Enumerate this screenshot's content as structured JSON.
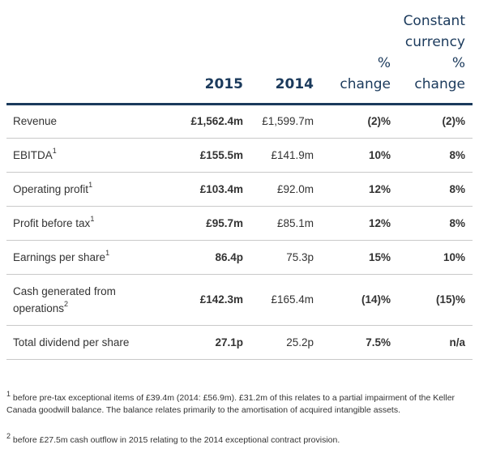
{
  "header": {
    "col_2015": "2015",
    "col_2014": "2014",
    "pct_change_line1": "%",
    "pct_change_line2": "change",
    "cc_line1": "Constant",
    "cc_line2": "currency",
    "cc_line3": "%",
    "cc_line4": "change"
  },
  "rows": [
    {
      "label": "Revenue",
      "sup": "",
      "y2015": "£1,562.4m",
      "y2014": "£1,599.7m",
      "pct": "(2)%",
      "cc": "(2)%"
    },
    {
      "label": "EBITDA",
      "sup": "1",
      "y2015": "£155.5m",
      "y2014": "£141.9m",
      "pct": "10%",
      "cc": "8%"
    },
    {
      "label": "Operating profit",
      "sup": "1",
      "y2015": "£103.4m",
      "y2014": "£92.0m",
      "pct": "12%",
      "cc": "8%"
    },
    {
      "label": "Profit before tax",
      "sup": "1",
      "y2015": "£95.7m",
      "y2014": "£85.1m",
      "pct": "12%",
      "cc": "8%"
    },
    {
      "label": "Earnings per share",
      "sup": "1",
      "y2015": "86.4p",
      "y2014": "75.3p",
      "pct": "15%",
      "cc": "10%"
    },
    {
      "label": "Cash generated from operations",
      "sup": "2",
      "y2015": "£142.3m",
      "y2014": "£165.4m",
      "pct": "(14)%",
      "cc": "(15)%"
    },
    {
      "label": "Total dividend per share",
      "sup": "",
      "y2015": "27.1p",
      "y2014": "25.2p",
      "pct": "7.5%",
      "cc": "n/a"
    }
  ],
  "footnotes": [
    {
      "marker": "1",
      "text": " before pre-tax exceptional items of £39.4m (2014: £56.9m). £31.2m of this relates to a partial impairment of the Keller Canada goodwill balance. The balance relates primarily to the amortisation of acquired intangible assets."
    },
    {
      "marker": "2",
      "text": " before £27.5m cash outflow in 2015 relating to the 2014 exceptional contract provision."
    }
  ]
}
